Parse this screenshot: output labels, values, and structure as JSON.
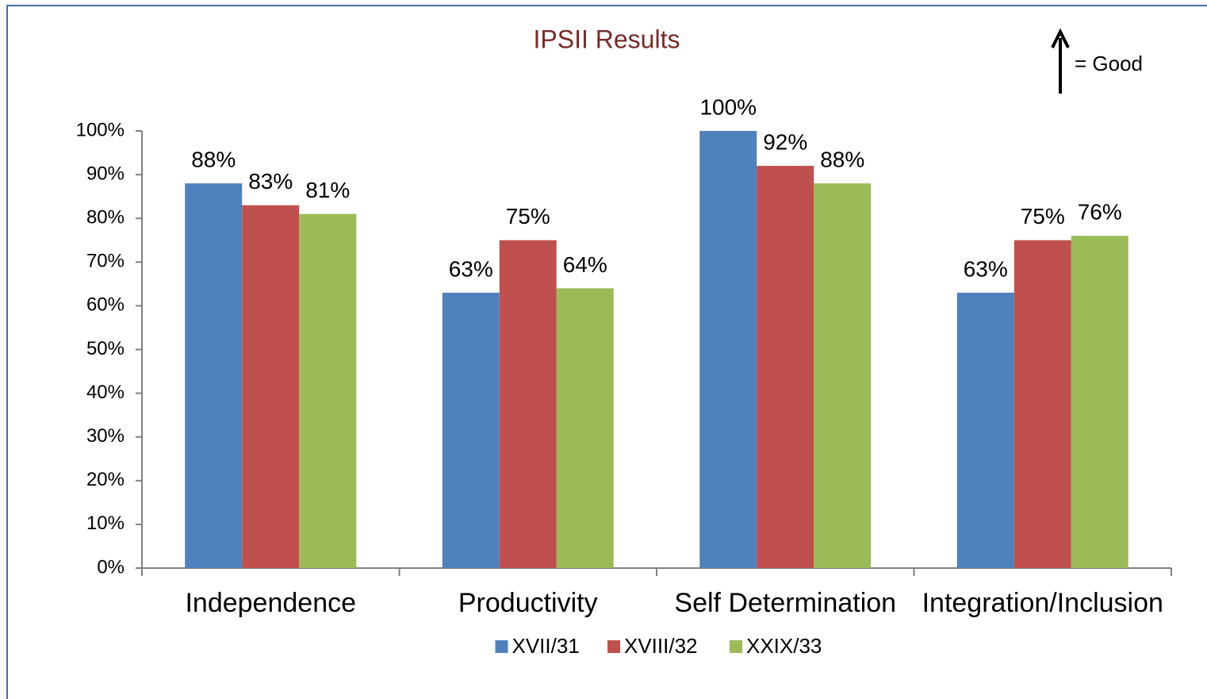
{
  "chart_data": {
    "type": "bar",
    "title": "IPSII Results",
    "annotation": "= Good",
    "categories": [
      "Independence",
      "Productivity",
      "Self Determination",
      "Integration/Inclusion"
    ],
    "series": [
      {
        "name": "XVII/31",
        "color": "#4f81bd",
        "values": [
          88,
          63,
          100,
          63
        ],
        "value_labels": [
          "88%",
          "63%",
          "100%",
          "63%"
        ]
      },
      {
        "name": "XVIII/32",
        "color": "#c0504d",
        "values": [
          83,
          75,
          92,
          75
        ],
        "value_labels": [
          "83%",
          "75%",
          "92%",
          "75%"
        ]
      },
      {
        "name": "XXIX/33",
        "color": "#9bbb59",
        "values": [
          81,
          64,
          88,
          76
        ],
        "value_labels": [
          "81%",
          "64%",
          "88%",
          "76%"
        ]
      }
    ],
    "ylim": [
      0,
      100
    ],
    "yticks": [
      {
        "value": 0,
        "label": "0%"
      },
      {
        "value": 10,
        "label": "10%"
      },
      {
        "value": 20,
        "label": "20%"
      },
      {
        "value": 30,
        "label": "30%"
      },
      {
        "value": 40,
        "label": "40%"
      },
      {
        "value": 50,
        "label": "50%"
      },
      {
        "value": 60,
        "label": "60%"
      },
      {
        "value": 70,
        "label": "70%"
      },
      {
        "value": 80,
        "label": "80%"
      },
      {
        "value": 90,
        "label": "90%"
      },
      {
        "value": 100,
        "label": "100%"
      }
    ],
    "legend": "bottom"
  }
}
